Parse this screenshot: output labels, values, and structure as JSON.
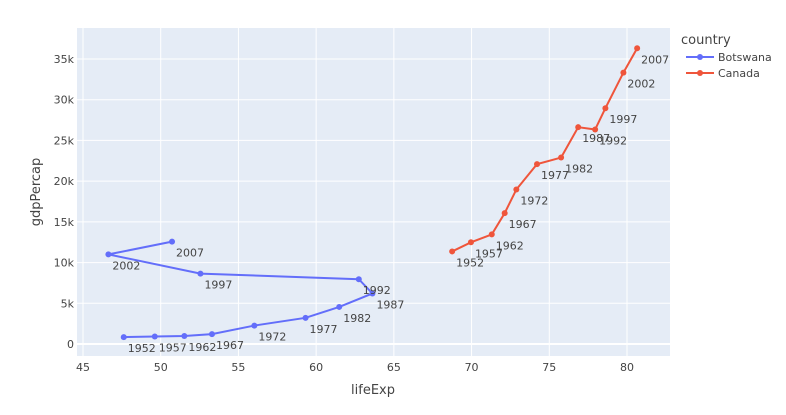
{
  "chart_data": {
    "type": "line",
    "title": "",
    "xlabel": "lifeExp",
    "ylabel": "gdpPercap",
    "xlim": [
      44.6,
      82.7
    ],
    "ylim": [
      -1500,
      38300
    ],
    "grid": true,
    "legend_position": "right",
    "legend_title": "country",
    "x_ticks": [
      45,
      50,
      55,
      60,
      65,
      70,
      75,
      80
    ],
    "x_tick_labels": [
      "45",
      "50",
      "55",
      "60",
      "65",
      "70",
      "75",
      "80"
    ],
    "y_ticks": [
      0,
      5000,
      10000,
      15000,
      20000,
      25000,
      30000,
      35000
    ],
    "y_tick_labels": [
      "0",
      "5k",
      "10k",
      "15k",
      "20k",
      "25k",
      "30k",
      "35k"
    ],
    "series": [
      {
        "name": "Botswana",
        "color": "#636efa",
        "labels": [
          "1952",
          "1957",
          "1962",
          "1967",
          "1972",
          "1977",
          "1982",
          "1987",
          "1992",
          "1997",
          "2002",
          "2007"
        ],
        "x": [
          47.622,
          49.618,
          51.52,
          53.298,
          56.024,
          59.319,
          61.484,
          63.622,
          62.745,
          52.556,
          46.634,
          50.728
        ],
        "y": [
          851.24,
          918.23,
          983.65,
          1214.71,
          2263.61,
          3214.86,
          4551.14,
          6205.88,
          7954.11,
          8647.14,
          11003.61,
          12569.85
        ]
      },
      {
        "name": "Canada",
        "color": "#ef553b",
        "labels": [
          "1952",
          "1957",
          "1962",
          "1967",
          "1972",
          "1977",
          "1982",
          "1987",
          "1992",
          "1997",
          "2002",
          "2007"
        ],
        "x": [
          68.75,
          69.96,
          71.3,
          72.13,
          72.88,
          74.21,
          75.76,
          76.86,
          77.95,
          78.61,
          79.77,
          80.653
        ],
        "y": [
          11367.16,
          12489.95,
          13462.49,
          16076.59,
          18970.57,
          22090.88,
          22898.79,
          26626.52,
          26342.88,
          28954.93,
          33328.97,
          36319.24
        ]
      }
    ]
  }
}
